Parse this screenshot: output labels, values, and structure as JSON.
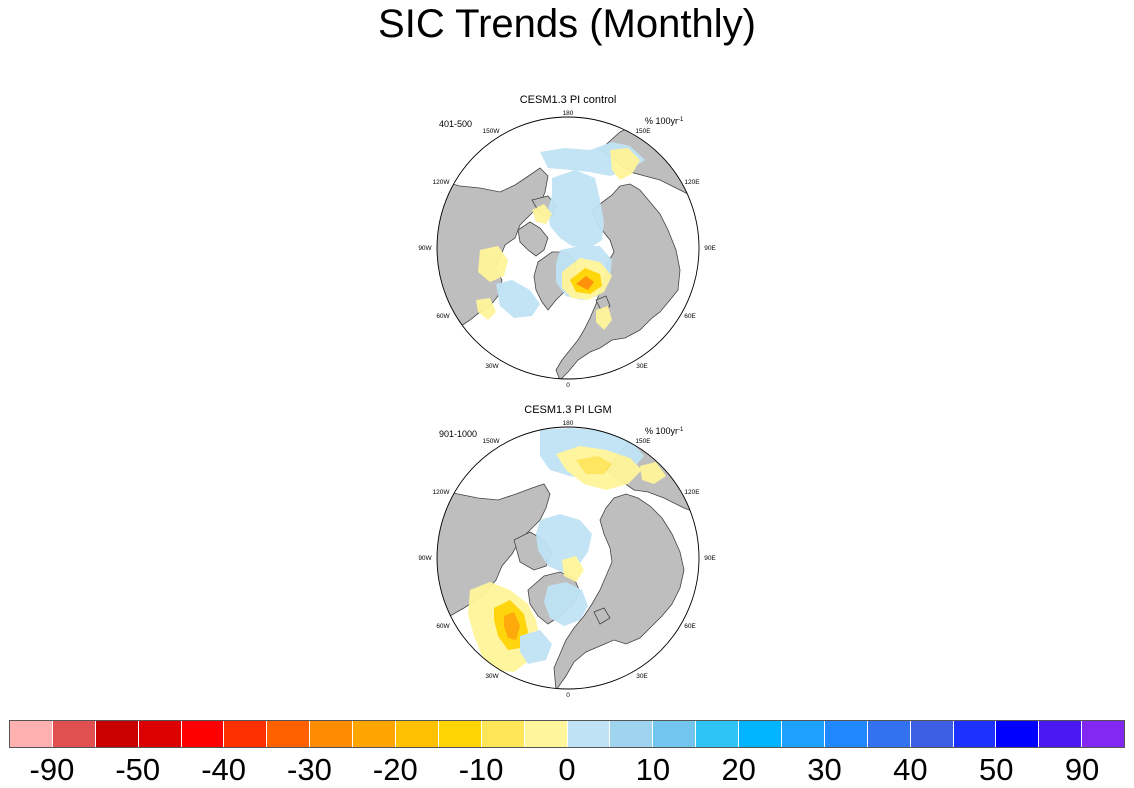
{
  "title": "SIC Trends (Monthly)",
  "panels": [
    {
      "title": "CESM1.3 PI control",
      "period": "401-500",
      "units": "% 100yr",
      "units_exp": "-1",
      "lon_labels": {
        "lon180": "180",
        "lon150W": "150W",
        "lon150E": "150E",
        "lon120W": "120W",
        "lon120E": "120E",
        "lon90W": "90W",
        "lon90E": "90E",
        "lon60W": "60W",
        "lon60E": "60E",
        "lon30W": "30W",
        "lon30E": "30E",
        "lon0": "0"
      }
    },
    {
      "title": "CESM1.3 PI LGM",
      "period": "901-1000",
      "units": "% 100yr",
      "units_exp": "-1",
      "lon_labels": {
        "lon180": "180",
        "lon150W": "150W",
        "lon150E": "150E",
        "lon120W": "120W",
        "lon120E": "120E",
        "lon90W": "90W",
        "lon90E": "90E",
        "lon60W": "60W",
        "lon60E": "60E",
        "lon30W": "30W",
        "lon30E": "30E",
        "lon0": "0"
      }
    }
  ],
  "colorbar": {
    "colors": [
      "#ffb0b0",
      "#e05050",
      "#c80000",
      "#dc0000",
      "#ff0000",
      "#ff3000",
      "#ff6000",
      "#ff8c00",
      "#ffa500",
      "#ffc000",
      "#ffd400",
      "#ffe558",
      "#fff59a",
      "#bfe3f5",
      "#9fd4ee",
      "#72c6ee",
      "#2ec4f5",
      "#00b4ff",
      "#1ea0ff",
      "#2288ff",
      "#3272ee",
      "#3c5ee2",
      "#1e32ff",
      "#0000ff",
      "#4a18f0",
      "#8228f0"
    ],
    "labels": [
      "-90",
      "-50",
      "-40",
      "-30",
      "-20",
      "-10",
      "0",
      "10",
      "20",
      "30",
      "40",
      "50",
      "90"
    ]
  },
  "map_colors": {
    "land": "#bebebe",
    "ocean": "#ffffff",
    "coast": "#444444"
  }
}
